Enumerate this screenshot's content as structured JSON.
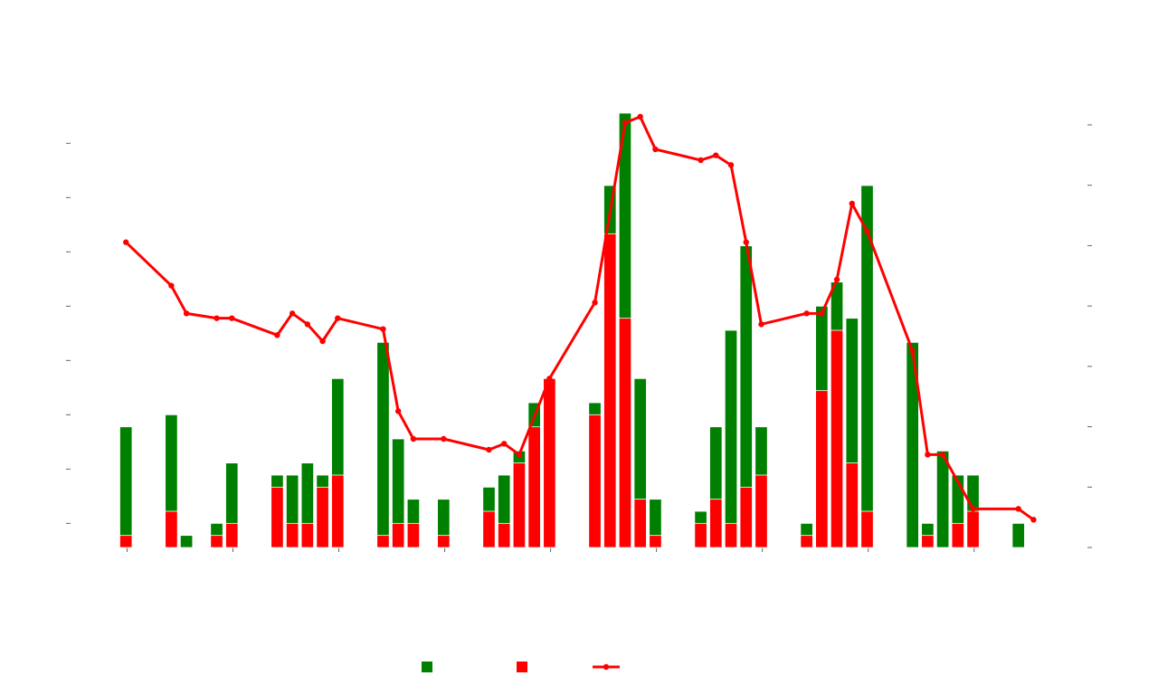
{
  "chart_data": {
    "type": "bar",
    "title": "",
    "xlabel": "",
    "ylabel_left": "",
    "ylabel_right": "",
    "x_range": [
      0,
      61
    ],
    "x_ticks": [
      2,
      9,
      16,
      23,
      30,
      37,
      44,
      51,
      58
    ],
    "y_left_range": [
      0,
      36
    ],
    "y_left_ticks": [
      2,
      6.5,
      11,
      15.5,
      20,
      24.5,
      29,
      33.5
    ],
    "y_right_range": [
      0,
      36
    ],
    "y_right_ticks": [
      0,
      5,
      10,
      15,
      20,
      25,
      30,
      35
    ],
    "colors": {
      "series_a": "#008000",
      "series_b": "#ff0000",
      "line": "#ff0000"
    },
    "bars": [
      {
        "x": 1,
        "a": 10,
        "b": 1
      },
      {
        "x": 4,
        "a": 11,
        "b": 3
      },
      {
        "x": 5,
        "a": 1,
        "b": 0
      },
      {
        "x": 7,
        "a": 2,
        "b": 1
      },
      {
        "x": 8,
        "a": 7,
        "b": 2
      },
      {
        "x": 11,
        "a": 6,
        "b": 5
      },
      {
        "x": 12,
        "a": 6,
        "b": 2
      },
      {
        "x": 13,
        "a": 7,
        "b": 2
      },
      {
        "x": 14,
        "a": 6,
        "b": 5
      },
      {
        "x": 15,
        "a": 14,
        "b": 6
      },
      {
        "x": 18,
        "a": 17,
        "b": 1
      },
      {
        "x": 19,
        "a": 9,
        "b": 2
      },
      {
        "x": 20,
        "a": 4,
        "b": 2
      },
      {
        "x": 22,
        "a": 4,
        "b": 1
      },
      {
        "x": 25,
        "a": 5,
        "b": 3
      },
      {
        "x": 26,
        "a": 6,
        "b": 2
      },
      {
        "x": 27,
        "a": 8,
        "b": 7
      },
      {
        "x": 28,
        "a": 12,
        "b": 10
      },
      {
        "x": 29,
        "a": 14,
        "b": 14
      },
      {
        "x": 32,
        "a": 12,
        "b": 11
      },
      {
        "x": 33,
        "a": 30,
        "b": 26
      },
      {
        "x": 34,
        "a": 36,
        "b": 19
      },
      {
        "x": 35,
        "a": 14,
        "b": 4
      },
      {
        "x": 36,
        "a": 4,
        "b": 1
      },
      {
        "x": 39,
        "a": 3,
        "b": 2
      },
      {
        "x": 40,
        "a": 10,
        "b": 4
      },
      {
        "x": 41,
        "a": 18,
        "b": 2
      },
      {
        "x": 42,
        "a": 25,
        "b": 5
      },
      {
        "x": 43,
        "a": 10,
        "b": 6
      },
      {
        "x": 46,
        "a": 2,
        "b": 1
      },
      {
        "x": 47,
        "a": 20,
        "b": 13
      },
      {
        "x": 48,
        "a": 22,
        "b": 18
      },
      {
        "x": 49,
        "a": 19,
        "b": 7
      },
      {
        "x": 50,
        "a": 30,
        "b": 3
      },
      {
        "x": 53,
        "a": 17,
        "b": 0
      },
      {
        "x": 54,
        "a": 2,
        "b": 1
      },
      {
        "x": 55,
        "a": 8,
        "b": 0
      },
      {
        "x": 56,
        "a": 6,
        "b": 2
      },
      {
        "x": 57,
        "a": 6,
        "b": 3
      },
      {
        "x": 60,
        "a": 2,
        "b": 0
      }
    ],
    "line": [
      {
        "x": 1,
        "y": 25.3
      },
      {
        "x": 4,
        "y": 21.7
      },
      {
        "x": 5,
        "y": 19.4
      },
      {
        "x": 7,
        "y": 19.0
      },
      {
        "x": 8,
        "y": 19.0
      },
      {
        "x": 11,
        "y": 17.6
      },
      {
        "x": 12,
        "y": 19.4
      },
      {
        "x": 13,
        "y": 18.5
      },
      {
        "x": 14,
        "y": 17.1
      },
      {
        "x": 15,
        "y": 19.0
      },
      {
        "x": 18,
        "y": 18.1
      },
      {
        "x": 19,
        "y": 11.3
      },
      {
        "x": 20,
        "y": 9.0
      },
      {
        "x": 22,
        "y": 9.0
      },
      {
        "x": 25,
        "y": 8.1
      },
      {
        "x": 26,
        "y": 8.6
      },
      {
        "x": 27,
        "y": 7.7
      },
      {
        "x": 29,
        "y": 14.0
      },
      {
        "x": 32,
        "y": 20.3
      },
      {
        "x": 34,
        "y": 35.2
      },
      {
        "x": 35,
        "y": 35.7
      },
      {
        "x": 36,
        "y": 33.0
      },
      {
        "x": 39,
        "y": 32.1
      },
      {
        "x": 40,
        "y": 32.5
      },
      {
        "x": 41,
        "y": 31.7
      },
      {
        "x": 42,
        "y": 25.3
      },
      {
        "x": 43,
        "y": 18.5
      },
      {
        "x": 46,
        "y": 19.4
      },
      {
        "x": 47,
        "y": 19.4
      },
      {
        "x": 48,
        "y": 22.2
      },
      {
        "x": 49,
        "y": 28.5
      },
      {
        "x": 50,
        "y": 26.2
      },
      {
        "x": 53,
        "y": 16.3
      },
      {
        "x": 54,
        "y": 7.7
      },
      {
        "x": 55,
        "y": 7.7
      },
      {
        "x": 57,
        "y": 3.2
      },
      {
        "x": 60,
        "y": 3.2
      },
      {
        "x": 61,
        "y": 2.3
      }
    ],
    "legend": {
      "placement": "bottom-center",
      "labels": [
        "",
        "",
        ""
      ]
    }
  }
}
